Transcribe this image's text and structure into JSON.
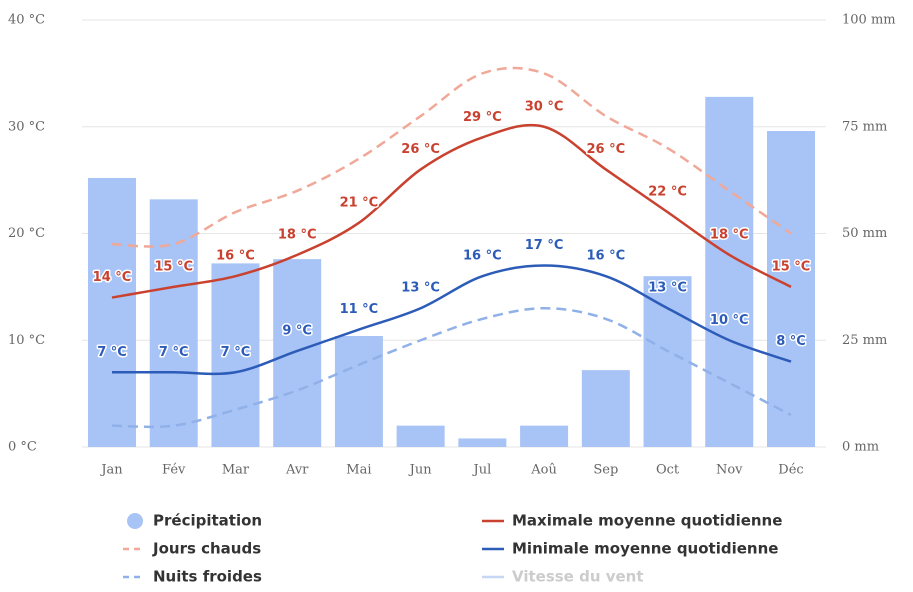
{
  "chart_data": {
    "type": "bar",
    "categories": [
      "Jan",
      "Fév",
      "Mar",
      "Avr",
      "Mai",
      "Jun",
      "Jul",
      "Aoû",
      "Sep",
      "Oct",
      "Nov",
      "Déc"
    ],
    "ylim": [
      0,
      40
    ],
    "yticks": [
      {
        "value": 0,
        "label": "0 °C"
      },
      {
        "value": 10,
        "label": "10 °C"
      },
      {
        "value": 20,
        "label": "20 °C"
      },
      {
        "value": 30,
        "label": "30 °C"
      },
      {
        "value": 40,
        "label": "40 °C"
      }
    ],
    "y2lim": [
      0,
      100
    ],
    "y2ticks": [
      {
        "value": 0,
        "label": "0 mm"
      },
      {
        "value": 25,
        "label": "25 mm"
      },
      {
        "value": 50,
        "label": "50 mm"
      },
      {
        "value": 75,
        "label": "75 mm"
      },
      {
        "value": 100,
        "label": "100 mm"
      }
    ],
    "grid": true,
    "series": [
      {
        "name": "Précipitation",
        "type": "bar",
        "axis": "y2",
        "color": "#a8c3f5",
        "values": [
          63,
          58,
          43,
          44,
          26,
          5,
          2,
          5,
          18,
          40,
          82,
          74
        ]
      },
      {
        "name": "Jours chauds",
        "type": "line",
        "dash": true,
        "color": "#f0a898",
        "values": [
          19,
          19,
          22,
          24,
          27,
          31,
          35,
          35,
          31,
          28,
          24,
          20
        ]
      },
      {
        "name": "Nuits froides",
        "type": "line",
        "dash": true,
        "color": "#90b1e8",
        "values": [
          2,
          2,
          3.5,
          5.3,
          7.7,
          10,
          12,
          13,
          12,
          9,
          6,
          3
        ]
      },
      {
        "name": "Maximale moyenne quotidienne",
        "type": "line",
        "dash": false,
        "color": "#c9412f",
        "values": [
          14,
          15,
          16,
          18,
          21,
          26,
          29,
          30,
          26,
          22,
          18,
          15
        ],
        "value_labels": [
          "14 °C",
          "15 °C",
          "16 °C",
          "18 °C",
          "21 °C",
          "26 °C",
          "29 °C",
          "30 °C",
          "26 °C",
          "22 °C",
          "18 °C",
          "15 °C"
        ]
      },
      {
        "name": "Minimale moyenne quotidienne",
        "type": "line",
        "dash": false,
        "color": "#2c5cb8",
        "values": [
          7,
          7,
          7,
          9,
          11,
          13,
          16,
          17,
          16,
          13,
          10,
          8
        ],
        "value_labels": [
          "7 °C",
          "7 °C",
          "7 °C",
          "9 °C",
          "11 °C",
          "13 °C",
          "16 °C",
          "17 °C",
          "16 °C",
          "13 °C",
          "10 °C",
          "8 °C"
        ]
      },
      {
        "name": "Vitesse du vent",
        "type": "line",
        "visible": false,
        "color": "#c6d7f3"
      }
    ]
  }
}
